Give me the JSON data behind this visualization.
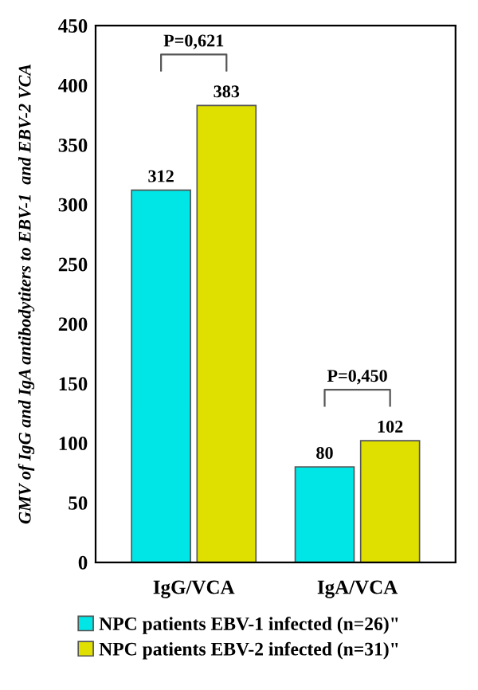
{
  "chart_data": {
    "type": "bar",
    "ylabel": "GMV of IgG and IgA antibodytiters to EBV-1  and EBV-2 VCA",
    "categories": [
      "IgG/VCA",
      "IgA/VCA"
    ],
    "series": [
      {
        "name": "NPC patients EBV-1 infected (n=26)\"",
        "color": "#00e5e5",
        "values": [
          312,
          80
        ]
      },
      {
        "name": "NPC patients EBV-2 infected (n=31)\"",
        "color": "#e0e000",
        "values": [
          383,
          102
        ]
      }
    ],
    "ylim": [
      0,
      450
    ],
    "yticks": [
      0,
      50,
      100,
      150,
      200,
      250,
      300,
      350,
      400,
      450
    ],
    "data_labels": true,
    "grid": false,
    "legend": "bottom",
    "annotations": [
      "P=0,621",
      "P=0,450"
    ]
  }
}
